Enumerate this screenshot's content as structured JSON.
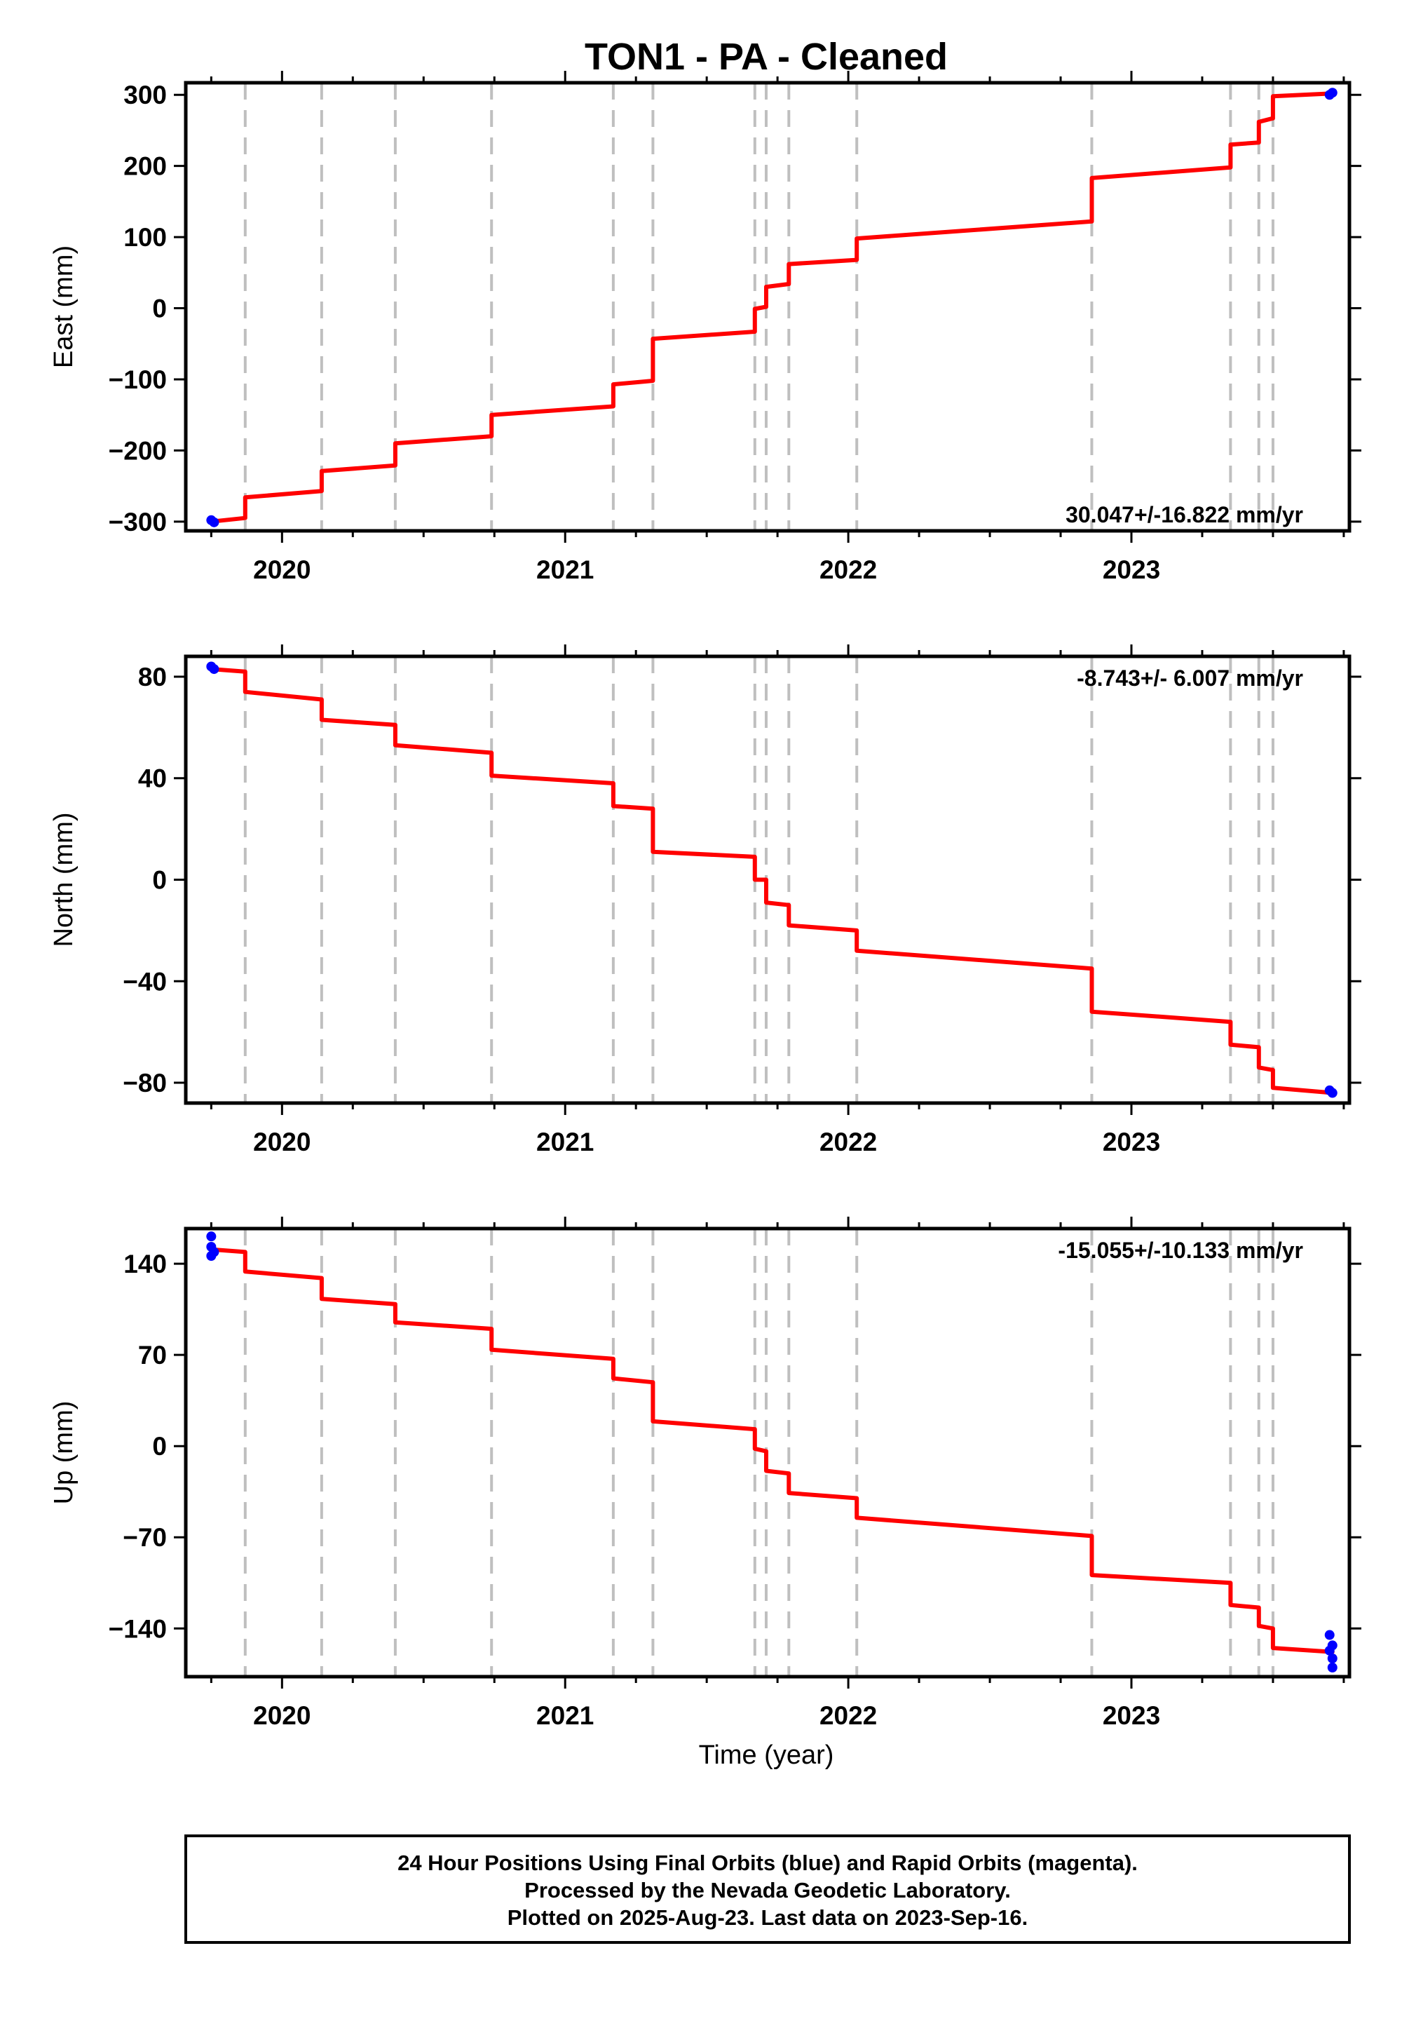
{
  "title": "TON1  - PA - Cleaned",
  "chart_data": [
    {
      "type": "line",
      "ylabel": "East (mm)",
      "xlim": [
        2019.66,
        2023.77
      ],
      "ylim": [
        -313,
        317
      ],
      "yticks": [
        -300,
        -200,
        -100,
        0,
        100,
        200,
        300
      ],
      "ytick_labels": [
        "−300",
        "−200",
        "−100",
        "0",
        "100",
        "200",
        "300"
      ],
      "xticks": [
        2020,
        2021,
        2022,
        2023
      ],
      "xtick_labels": [
        "2020",
        "2021",
        "2022",
        "2023"
      ],
      "rate_label": "30.047+/-16.822 mm/yr",
      "rate_placement": "bottom-right",
      "series": [
        {
          "color": "#ff0000",
          "x": [
            2019.75,
            2019.87,
            2019.87,
            2020.14,
            2020.14,
            2020.4,
            2020.4,
            2020.74,
            2020.74,
            2021.17,
            2021.17,
            2021.31,
            2021.31,
            2021.67,
            2021.67,
            2021.71,
            2021.71,
            2021.79,
            2021.79,
            2022.03,
            2022.03,
            2022.86,
            2022.86,
            2023.35,
            2023.35,
            2023.45,
            2023.45,
            2023.5,
            2023.5,
            2023.71
          ],
          "y": [
            -300,
            -295,
            -266,
            -257,
            -229,
            -221,
            -190,
            -180,
            -150,
            -138,
            -107,
            -102,
            -43,
            -33,
            -1,
            2,
            30,
            34,
            62,
            68,
            98,
            122,
            183,
            198,
            230,
            233,
            262,
            267,
            298,
            302
          ]
        },
        {
          "color": "#0000ff",
          "x": [
            2019.75,
            2019.76,
            2023.7,
            2023.71
          ],
          "y": [
            -298,
            -301,
            300,
            303
          ]
        }
      ]
    },
    {
      "type": "line",
      "ylabel": "North (mm)",
      "xlim": [
        2019.66,
        2023.77
      ],
      "ylim": [
        -88,
        88
      ],
      "yticks": [
        -80,
        -40,
        0,
        40,
        80
      ],
      "ytick_labels": [
        "−80",
        "−40",
        "0",
        "40",
        "80"
      ],
      "xticks": [
        2020,
        2021,
        2022,
        2023
      ],
      "xtick_labels": [
        "2020",
        "2021",
        "2022",
        "2023"
      ],
      "rate_label": "-8.743+/- 6.007 mm/yr",
      "rate_placement": "top-right",
      "series": [
        {
          "color": "#ff0000",
          "x": [
            2019.75,
            2019.87,
            2019.87,
            2020.14,
            2020.14,
            2020.4,
            2020.4,
            2020.74,
            2020.74,
            2021.17,
            2021.17,
            2021.31,
            2021.31,
            2021.67,
            2021.67,
            2021.71,
            2021.71,
            2021.79,
            2021.79,
            2022.03,
            2022.03,
            2022.86,
            2022.86,
            2023.35,
            2023.35,
            2023.45,
            2023.45,
            2023.5,
            2023.5,
            2023.71
          ],
          "y": [
            83,
            82,
            74,
            71,
            63,
            61,
            53,
            50,
            41,
            38,
            29,
            28,
            11,
            9,
            0,
            0,
            -9,
            -10,
            -18,
            -20,
            -28,
            -35,
            -52,
            -56,
            -65,
            -66,
            -74,
            -75,
            -82,
            -84
          ]
        },
        {
          "color": "#0000ff",
          "x": [
            2019.75,
            2019.76,
            2023.7,
            2023.71
          ],
          "y": [
            84,
            83,
            -83,
            -84
          ]
        }
      ]
    },
    {
      "type": "line",
      "ylabel": "Up (mm)",
      "xticks_title": "Time (year)",
      "xlim": [
        2019.66,
        2023.77
      ],
      "ylim": [
        -177,
        167
      ],
      "yticks": [
        -140,
        -70,
        0,
        70,
        140
      ],
      "ytick_labels": [
        "−140",
        "−70",
        "0",
        "70",
        "140"
      ],
      "xticks": [
        2020,
        2021,
        2022,
        2023
      ],
      "xtick_labels": [
        "2020",
        "2021",
        "2022",
        "2023"
      ],
      "rate_label": "-15.055+/-10.133 mm/yr",
      "rate_placement": "top-right",
      "series": [
        {
          "color": "#ff0000",
          "x": [
            2019.75,
            2019.87,
            2019.87,
            2020.14,
            2020.14,
            2020.4,
            2020.4,
            2020.74,
            2020.74,
            2021.17,
            2021.17,
            2021.31,
            2021.31,
            2021.67,
            2021.67,
            2021.71,
            2021.71,
            2021.79,
            2021.79,
            2022.03,
            2022.03,
            2022.86,
            2022.86,
            2023.35,
            2023.35,
            2023.45,
            2023.45,
            2023.5,
            2023.5,
            2023.71
          ],
          "y": [
            151,
            149,
            134,
            129,
            113,
            109,
            95,
            90,
            74,
            67,
            52,
            49,
            19,
            13,
            -2,
            -4,
            -19,
            -21,
            -36,
            -40,
            -55,
            -69,
            -99,
            -105,
            -122,
            -124,
            -138,
            -140,
            -155,
            -158
          ]
        },
        {
          "color": "#0000ff",
          "x": [
            2019.75,
            2019.75,
            2019.75,
            2019.76,
            2023.7,
            2023.71,
            2023.7,
            2023.71,
            2023.71
          ],
          "y": [
            161,
            153,
            146,
            149,
            -145,
            -153,
            -157,
            -163,
            -170
          ]
        }
      ]
    }
  ],
  "offset_years": [
    2019.87,
    2020.14,
    2020.4,
    2020.74,
    2021.17,
    2021.31,
    2021.67,
    2021.71,
    2021.79,
    2022.03,
    2022.86,
    2023.35,
    2023.45,
    2023.5
  ],
  "xlabel": "Time (year)",
  "colors": {
    "model": "#ff0000",
    "final_orbits": "#0000ff",
    "offsets": "#bfbfbf",
    "frame": "#000000"
  },
  "footer": {
    "line1": "24 Hour Positions Using Final Orbits (blue) and Rapid Orbits (magenta).",
    "line2": "Processed by the Nevada Geodetic Laboratory.",
    "line3": "Plotted on 2025-Aug-23. Last data on 2023-Sep-16."
  }
}
